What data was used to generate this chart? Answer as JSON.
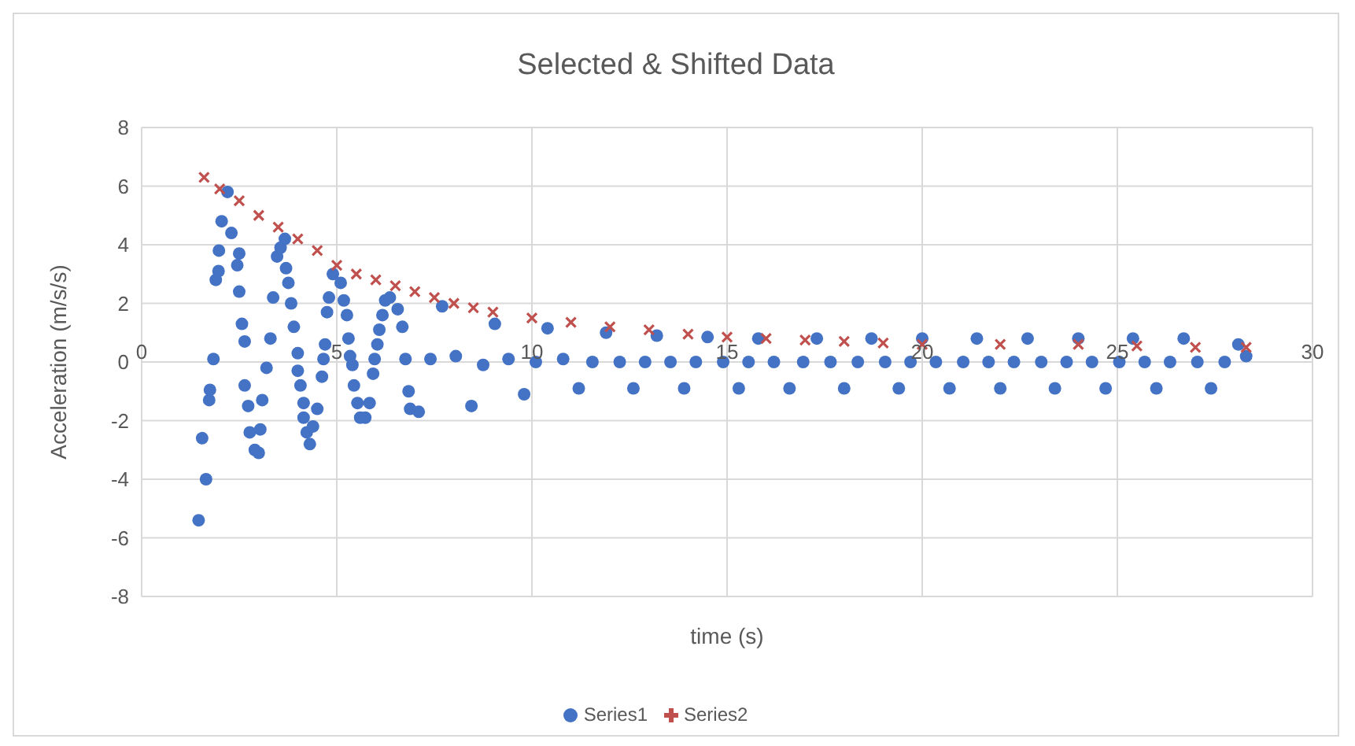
{
  "chart_data": {
    "type": "scatter",
    "title": "Selected & Shifted Data",
    "xlabel": "time (s)",
    "ylabel": "Acceleration (m/s/s)",
    "xlim": [
      0,
      30
    ],
    "xticks": [
      0,
      5,
      10,
      15,
      20,
      25,
      30
    ],
    "ylim": [
      -8,
      8
    ],
    "yticks": [
      -8,
      -6,
      -4,
      -2,
      0,
      2,
      4,
      6,
      8
    ],
    "grid": true,
    "legend": "bottom",
    "series": [
      {
        "name": "Series1",
        "color": "#4472c4",
        "marker": "circle",
        "x": [
          1.46,
          1.55,
          1.65,
          1.73,
          1.75,
          1.84,
          1.9,
          1.97,
          1.98,
          2.05,
          2.2,
          2.3,
          2.45,
          2.5,
          2.5,
          2.57,
          2.64,
          2.64,
          2.73,
          2.77,
          2.9,
          3.0,
          3.04,
          3.09,
          3.2,
          3.3,
          3.37,
          3.47,
          3.56,
          3.67,
          3.7,
          3.76,
          3.83,
          3.9,
          4.0,
          4.0,
          4.07,
          4.15,
          4.15,
          4.23,
          4.31,
          4.39,
          4.5,
          4.62,
          4.66,
          4.7,
          4.75,
          4.8,
          4.9,
          5.1,
          5.18,
          5.26,
          5.3,
          5.34,
          5.4,
          5.44,
          5.53,
          5.6,
          5.73,
          5.84,
          5.93,
          5.97,
          6.04,
          6.09,
          6.17,
          6.24,
          6.36,
          6.56,
          6.68,
          6.76,
          6.84,
          6.88,
          7.1,
          7.4,
          7.7,
          8.05,
          8.45,
          8.75,
          9.05,
          9.4,
          9.8,
          10.1,
          10.4,
          10.8,
          11.2,
          11.55,
          11.9,
          12.25,
          12.6,
          12.9,
          13.2,
          13.55,
          13.9,
          14.2,
          14.5,
          14.9,
          15.3,
          15.55,
          15.8,
          16.2,
          16.6,
          16.95,
          17.3,
          17.65,
          18.0,
          18.35,
          18.7,
          19.05,
          19.4,
          19.7,
          20.0,
          20.35,
          20.7,
          21.05,
          21.4,
          21.7,
          22.0,
          22.35,
          22.7,
          23.05,
          23.4,
          23.7,
          24.0,
          24.35,
          24.7,
          25.05,
          25.4,
          25.7,
          26.0,
          26.35,
          26.7,
          27.05,
          27.4,
          27.75,
          28.1,
          28.3
        ],
        "values": [
          -5.4,
          -2.6,
          -4.0,
          -1.3,
          -0.95,
          0.1,
          2.8,
          3.1,
          3.8,
          4.8,
          5.8,
          4.4,
          3.3,
          3.7,
          2.4,
          1.3,
          0.7,
          -0.8,
          -1.5,
          -2.4,
          -3.0,
          -3.1,
          -2.3,
          -1.3,
          -0.2,
          0.8,
          2.2,
          3.6,
          3.9,
          4.2,
          3.2,
          2.7,
          2.0,
          1.2,
          0.3,
          -0.3,
          -0.8,
          -1.4,
          -1.9,
          -2.4,
          -2.8,
          -2.2,
          -1.6,
          -0.5,
          0.1,
          0.6,
          1.7,
          2.2,
          3.0,
          2.7,
          2.1,
          1.6,
          0.8,
          0.2,
          -0.1,
          -0.8,
          -1.4,
          -1.9,
          -1.9,
          -1.4,
          -0.4,
          0.1,
          0.6,
          1.1,
          1.6,
          2.1,
          2.2,
          1.8,
          1.2,
          0.1,
          -1.0,
          -1.6,
          -1.7,
          0.1,
          1.9,
          0.2,
          -1.5,
          -0.1,
          1.3,
          0.1,
          -1.1,
          0.0,
          1.15,
          0.1,
          -0.9,
          0.0,
          1.0,
          0.0,
          -0.9,
          0.0,
          0.9,
          0.0,
          -0.9,
          0.0,
          0.85,
          0.0,
          -0.9,
          0.0,
          0.8,
          0.0,
          -0.9,
          0.0,
          0.8,
          0.0,
          -0.9,
          0.0,
          0.8,
          0.0,
          -0.9,
          0.0,
          0.8,
          0.0,
          -0.9,
          0.0,
          0.8,
          0.0,
          -0.9,
          0.0,
          0.8,
          0.0,
          -0.9,
          0.0,
          0.8,
          0.0,
          -0.9,
          0.0,
          0.8,
          0.0,
          -0.9,
          0.0,
          0.8,
          0.0,
          -0.9,
          0.0,
          0.6,
          0.2
        ]
      },
      {
        "name": "Series2",
        "color": "#c0504d",
        "marker": "cross",
        "x": [
          1.6,
          2,
          2.5,
          3,
          3.5,
          4,
          4.5,
          5,
          5.5,
          6,
          6.5,
          7,
          7.5,
          8,
          8.5,
          9,
          10,
          11,
          12,
          13,
          14,
          15,
          16,
          17,
          18,
          19,
          20,
          22,
          24,
          25.5,
          27,
          28.3
        ],
        "values": [
          6.3,
          5.9,
          5.5,
          5.0,
          4.6,
          4.2,
          3.8,
          3.3,
          3.0,
          2.8,
          2.6,
          2.4,
          2.2,
          2.0,
          1.85,
          1.7,
          1.5,
          1.35,
          1.2,
          1.1,
          0.95,
          0.85,
          0.8,
          0.75,
          0.7,
          0.65,
          0.6,
          0.6,
          0.6,
          0.55,
          0.5,
          0.5
        ]
      }
    ]
  }
}
